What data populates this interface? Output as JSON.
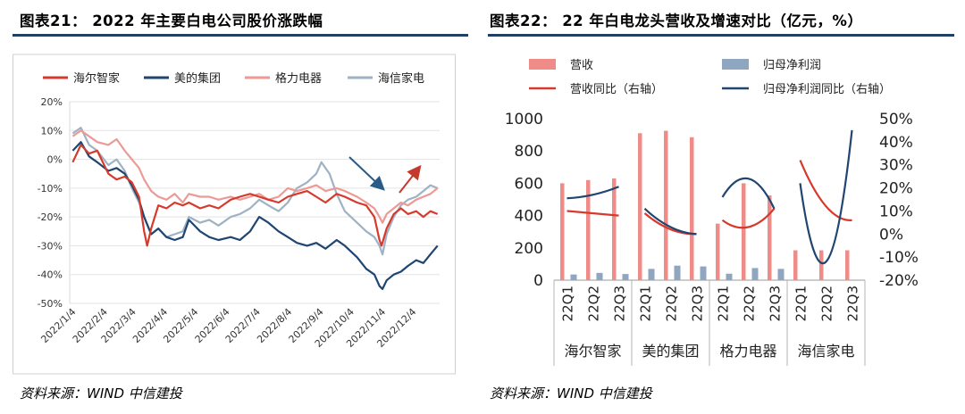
{
  "left_title": "图表21：   2022 年主要白电公司股价涨跌幅",
  "right_title": "图表22：   22 年白电龙头营收及增速对比（亿元，%）",
  "left_source": "资料来源：WIND    中信建投",
  "right_source": "资料来源：WIND    中信建投",
  "colors": {
    "rule": "#1f3f63",
    "haier": "#d63a2c",
    "midea": "#1f4570",
    "gree": "#ec9a96",
    "hisense": "#9fb2c4",
    "revenue_bar": "#ef8c88",
    "profit_bar": "#8ea6bf",
    "arrow_down": "#2a5a86",
    "arrow_up": "#c4392c"
  },
  "chart_data": [
    {
      "type": "line",
      "ylim": [
        -0.5,
        0.2
      ],
      "yticks": [
        "20%",
        "10%",
        "0%",
        "-10%",
        "-20%",
        "-30%",
        "-40%",
        "-50%"
      ],
      "ytick_values": [
        0.2,
        0.1,
        0.0,
        -0.1,
        -0.2,
        -0.3,
        -0.4,
        -0.5
      ],
      "xticks": [
        "2022/1/4",
        "2022/2/4",
        "2022/3/4",
        "2022/4/4",
        "2022/5/4",
        "2022/6/4",
        "2022/7/4",
        "2022/8/4",
        "2022/9/4",
        "2022/10/4",
        "2022/11/4",
        "2022/12/4"
      ],
      "xtick_values": [
        "2022-01-04",
        "2022-02-04",
        "2022-03-04",
        "2022-04-04",
        "2022-05-04",
        "2022-06-04",
        "2022-07-04",
        "2022-08-04",
        "2022-09-04",
        "2022-10-04",
        "2022-11-04",
        "2022-12-04"
      ],
      "x_range": [
        "2022-01-01",
        "2022-12-30"
      ],
      "legend_position": "top",
      "series": [
        {
          "name": "海尔智家",
          "color_key": "haier",
          "points": [
            [
              "2022-01-04",
              -0.01
            ],
            [
              "2022-01-12",
              0.05
            ],
            [
              "2022-01-20",
              0.02
            ],
            [
              "2022-01-28",
              0.03
            ],
            [
              "2022-02-08",
              -0.05
            ],
            [
              "2022-02-16",
              -0.07
            ],
            [
              "2022-02-24",
              -0.06
            ],
            [
              "2022-03-03",
              -0.08
            ],
            [
              "2022-03-10",
              -0.13
            ],
            [
              "2022-03-15",
              -0.25
            ],
            [
              "2022-03-18",
              -0.3
            ],
            [
              "2022-03-22",
              -0.24
            ],
            [
              "2022-03-29",
              -0.16
            ],
            [
              "2022-04-06",
              -0.17
            ],
            [
              "2022-04-14",
              -0.15
            ],
            [
              "2022-04-22",
              -0.16
            ],
            [
              "2022-04-28",
              -0.15
            ],
            [
              "2022-05-09",
              -0.17
            ],
            [
              "2022-05-18",
              -0.16
            ],
            [
              "2022-05-27",
              -0.17
            ],
            [
              "2022-06-08",
              -0.14
            ],
            [
              "2022-06-17",
              -0.13
            ],
            [
              "2022-06-27",
              -0.12
            ],
            [
              "2022-07-06",
              -0.13
            ],
            [
              "2022-07-15",
              -0.14
            ],
            [
              "2022-07-25",
              -0.15
            ],
            [
              "2022-08-03",
              -0.13
            ],
            [
              "2022-08-12",
              -0.12
            ],
            [
              "2022-08-22",
              -0.11
            ],
            [
              "2022-08-31",
              -0.13
            ],
            [
              "2022-09-09",
              -0.15
            ],
            [
              "2022-09-20",
              -0.12
            ],
            [
              "2022-09-28",
              -0.13
            ],
            [
              "2022-10-10",
              -0.15
            ],
            [
              "2022-10-19",
              -0.16
            ],
            [
              "2022-10-27",
              -0.2
            ],
            [
              "2022-11-01",
              -0.28
            ],
            [
              "2022-11-03",
              -0.3
            ],
            [
              "2022-11-08",
              -0.24
            ],
            [
              "2022-11-15",
              -0.19
            ],
            [
              "2022-11-22",
              -0.17
            ],
            [
              "2022-11-29",
              -0.19
            ],
            [
              "2022-12-07",
              -0.18
            ],
            [
              "2022-12-14",
              -0.2
            ],
            [
              "2022-12-21",
              -0.18
            ],
            [
              "2022-12-28",
              -0.19
            ]
          ]
        },
        {
          "name": "美的集团",
          "color_key": "midea",
          "points": [
            [
              "2022-01-04",
              0.03
            ],
            [
              "2022-01-12",
              0.06
            ],
            [
              "2022-01-20",
              0.01
            ],
            [
              "2022-01-28",
              -0.01
            ],
            [
              "2022-02-08",
              -0.04
            ],
            [
              "2022-02-16",
              -0.03
            ],
            [
              "2022-02-24",
              -0.05
            ],
            [
              "2022-03-03",
              -0.09
            ],
            [
              "2022-03-10",
              -0.14
            ],
            [
              "2022-03-15",
              -0.2
            ],
            [
              "2022-03-22",
              -0.26
            ],
            [
              "2022-03-29",
              -0.24
            ],
            [
              "2022-04-06",
              -0.27
            ],
            [
              "2022-04-14",
              -0.28
            ],
            [
              "2022-04-22",
              -0.27
            ],
            [
              "2022-04-28",
              -0.21
            ],
            [
              "2022-05-09",
              -0.25
            ],
            [
              "2022-05-18",
              -0.27
            ],
            [
              "2022-05-27",
              -0.28
            ],
            [
              "2022-06-08",
              -0.27
            ],
            [
              "2022-06-17",
              -0.28
            ],
            [
              "2022-06-27",
              -0.25
            ],
            [
              "2022-07-06",
              -0.2
            ],
            [
              "2022-07-15",
              -0.22
            ],
            [
              "2022-07-25",
              -0.25
            ],
            [
              "2022-08-03",
              -0.27
            ],
            [
              "2022-08-12",
              -0.29
            ],
            [
              "2022-08-22",
              -0.3
            ],
            [
              "2022-08-31",
              -0.29
            ],
            [
              "2022-09-09",
              -0.31
            ],
            [
              "2022-09-20",
              -0.28
            ],
            [
              "2022-09-28",
              -0.3
            ],
            [
              "2022-10-10",
              -0.34
            ],
            [
              "2022-10-19",
              -0.38
            ],
            [
              "2022-10-27",
              -0.4
            ],
            [
              "2022-11-01",
              -0.44
            ],
            [
              "2022-11-04",
              -0.45
            ],
            [
              "2022-11-08",
              -0.42
            ],
            [
              "2022-11-15",
              -0.4
            ],
            [
              "2022-11-22",
              -0.39
            ],
            [
              "2022-11-29",
              -0.37
            ],
            [
              "2022-12-07",
              -0.35
            ],
            [
              "2022-12-14",
              -0.36
            ],
            [
              "2022-12-21",
              -0.33
            ],
            [
              "2022-12-28",
              -0.3
            ]
          ]
        },
        {
          "name": "格力电器",
          "color_key": "gree",
          "points": [
            [
              "2022-01-04",
              0.08
            ],
            [
              "2022-01-12",
              0.1
            ],
            [
              "2022-01-20",
              0.08
            ],
            [
              "2022-01-28",
              0.06
            ],
            [
              "2022-02-08",
              0.05
            ],
            [
              "2022-02-16",
              0.07
            ],
            [
              "2022-02-24",
              0.03
            ],
            [
              "2022-03-03",
              0.0
            ],
            [
              "2022-03-10",
              -0.03
            ],
            [
              "2022-03-15",
              -0.07
            ],
            [
              "2022-03-22",
              -0.11
            ],
            [
              "2022-03-29",
              -0.13
            ],
            [
              "2022-04-06",
              -0.14
            ],
            [
              "2022-04-14",
              -0.12
            ],
            [
              "2022-04-22",
              -0.15
            ],
            [
              "2022-04-28",
              -0.12
            ],
            [
              "2022-05-09",
              -0.13
            ],
            [
              "2022-05-18",
              -0.13
            ],
            [
              "2022-05-27",
              -0.14
            ],
            [
              "2022-06-08",
              -0.13
            ],
            [
              "2022-06-17",
              -0.14
            ],
            [
              "2022-06-27",
              -0.13
            ],
            [
              "2022-07-06",
              -0.12
            ],
            [
              "2022-07-15",
              -0.14
            ],
            [
              "2022-07-25",
              -0.13
            ],
            [
              "2022-08-03",
              -0.1
            ],
            [
              "2022-08-12",
              -0.11
            ],
            [
              "2022-08-22",
              -0.1
            ],
            [
              "2022-08-31",
              -0.09
            ],
            [
              "2022-09-09",
              -0.11
            ],
            [
              "2022-09-20",
              -0.1
            ],
            [
              "2022-09-28",
              -0.11
            ],
            [
              "2022-10-10",
              -0.13
            ],
            [
              "2022-10-19",
              -0.15
            ],
            [
              "2022-10-27",
              -0.17
            ],
            [
              "2022-11-01",
              -0.2
            ],
            [
              "2022-11-04",
              -0.22
            ],
            [
              "2022-11-08",
              -0.19
            ],
            [
              "2022-11-15",
              -0.17
            ],
            [
              "2022-11-22",
              -0.15
            ],
            [
              "2022-11-29",
              -0.16
            ],
            [
              "2022-12-07",
              -0.14
            ],
            [
              "2022-12-14",
              -0.13
            ],
            [
              "2022-12-21",
              -0.12
            ],
            [
              "2022-12-28",
              -0.1
            ]
          ]
        },
        {
          "name": "海信家电",
          "color_key": "hisense",
          "points": [
            [
              "2022-01-04",
              0.09
            ],
            [
              "2022-01-12",
              0.11
            ],
            [
              "2022-01-20",
              0.05
            ],
            [
              "2022-01-28",
              0.03
            ],
            [
              "2022-02-08",
              -0.02
            ],
            [
              "2022-02-16",
              0.0
            ],
            [
              "2022-02-24",
              -0.04
            ],
            [
              "2022-03-03",
              -0.1
            ],
            [
              "2022-03-10",
              -0.15
            ],
            [
              "2022-03-15",
              -0.2
            ],
            [
              "2022-03-22",
              -0.26
            ],
            [
              "2022-03-29",
              -0.24
            ],
            [
              "2022-04-06",
              -0.27
            ],
            [
              "2022-04-14",
              -0.26
            ],
            [
              "2022-04-22",
              -0.25
            ],
            [
              "2022-04-28",
              -0.2
            ],
            [
              "2022-05-09",
              -0.22
            ],
            [
              "2022-05-18",
              -0.21
            ],
            [
              "2022-05-27",
              -0.23
            ],
            [
              "2022-06-08",
              -0.2
            ],
            [
              "2022-06-17",
              -0.19
            ],
            [
              "2022-06-27",
              -0.17
            ],
            [
              "2022-07-06",
              -0.14
            ],
            [
              "2022-07-15",
              -0.16
            ],
            [
              "2022-07-25",
              -0.18
            ],
            [
              "2022-08-03",
              -0.15
            ],
            [
              "2022-08-12",
              -0.1
            ],
            [
              "2022-08-22",
              -0.08
            ],
            [
              "2022-08-31",
              -0.05
            ],
            [
              "2022-09-05",
              -0.01
            ],
            [
              "2022-09-13",
              -0.05
            ],
            [
              "2022-09-20",
              -0.12
            ],
            [
              "2022-09-28",
              -0.18
            ],
            [
              "2022-10-10",
              -0.22
            ],
            [
              "2022-10-19",
              -0.25
            ],
            [
              "2022-10-27",
              -0.27
            ],
            [
              "2022-11-01",
              -0.3
            ],
            [
              "2022-11-04",
              -0.33
            ],
            [
              "2022-11-08",
              -0.26
            ],
            [
              "2022-11-15",
              -0.2
            ],
            [
              "2022-11-22",
              -0.16
            ],
            [
              "2022-11-29",
              -0.14
            ],
            [
              "2022-12-07",
              -0.13
            ],
            [
              "2022-12-14",
              -0.11
            ],
            [
              "2022-12-21",
              -0.09
            ],
            [
              "2022-12-28",
              -0.1
            ]
          ]
        }
      ]
    },
    {
      "type": "bar",
      "y_left_lim": [
        0,
        1000
      ],
      "y_left_ticks": [
        "1000",
        "800",
        "600",
        "400",
        "200",
        "0"
      ],
      "y_left_tick_values": [
        1000,
        800,
        600,
        400,
        200,
        0
      ],
      "y_right_lim": [
        -0.2,
        0.5
      ],
      "y_right_ticks": [
        "50%",
        "40%",
        "30%",
        "20%",
        "10%",
        "0%",
        "-10%",
        "-20%"
      ],
      "y_right_tick_values": [
        0.5,
        0.4,
        0.3,
        0.2,
        0.1,
        0.0,
        -0.1,
        -0.2
      ],
      "legend_position": "top",
      "legend": [
        "营收",
        "归母净利润",
        "营收同比（右轴）",
        "归母净利润同比（右轴）"
      ],
      "groups": [
        {
          "company": "海尔智家",
          "quarters": [
            "22Q1",
            "22Q2",
            "22Q3"
          ],
          "revenue": [
            600,
            620,
            630
          ],
          "profit": [
            35,
            45,
            38
          ],
          "revenue_yoy": [
            0.1,
            0.09,
            0.08
          ],
          "profit_yoy": [
            0.155,
            0.17,
            0.205
          ]
        },
        {
          "company": "美的集团",
          "quarters": [
            "22Q1",
            "22Q2",
            "22Q3"
          ],
          "revenue": [
            910,
            925,
            885
          ],
          "profit": [
            70,
            90,
            85
          ],
          "revenue_yoy": [
            0.09,
            0.02,
            0.0
          ],
          "profit_yoy": [
            0.11,
            0.03,
            0.0
          ]
        },
        {
          "company": "格力电器",
          "quarters": [
            "22Q1",
            "22Q2",
            "22Q3"
          ],
          "revenue": [
            350,
            600,
            525
          ],
          "profit": [
            40,
            75,
            70
          ],
          "revenue_yoy": [
            0.06,
            0.03,
            0.11
          ],
          "profit_yoy": [
            0.16,
            0.24,
            0.11
          ]
        },
        {
          "company": "海信家电",
          "quarters": [
            "22Q1",
            "22Q2",
            "22Q3"
          ],
          "revenue": [
            185,
            185,
            185
          ],
          "profit": [
            0,
            0,
            0
          ],
          "revenue_yoy": [
            0.32,
            0.12,
            0.06
          ],
          "profit_yoy": [
            0.22,
            -0.12,
            0.45
          ]
        }
      ]
    }
  ]
}
